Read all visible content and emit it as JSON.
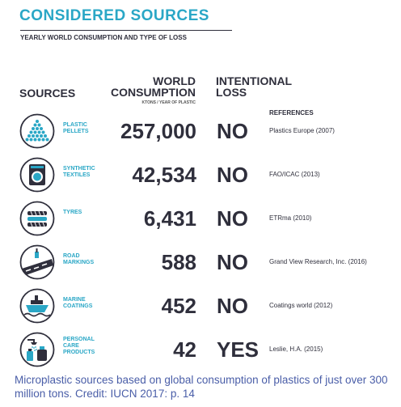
{
  "header": {
    "title": "CONSIDERED SOURCES",
    "subtitle": "YEARLY WORLD CONSUMPTION AND TYPE OF LOSS"
  },
  "columns": {
    "sources": "SOURCES",
    "consumption_line1": "WORLD",
    "consumption_line2": "CONSUMPTION",
    "consumption_unit": "KTONS / YEAR OF PLASTIC",
    "loss_line1": "INTENTIONAL",
    "loss_line2": "LOSS",
    "references": "REFERENCES"
  },
  "colors": {
    "accent": "#2aa7c6",
    "text": "#2f2f3c",
    "caption": "#4a5ea8"
  },
  "rows": [
    {
      "label1": "PLASTIC",
      "label2": "PELLETS",
      "label3": "",
      "icon": "pellets-icon",
      "value": "257,000",
      "loss": "NO",
      "ref": "Plastics Europe (2007)"
    },
    {
      "label1": "SYNTHETIC",
      "label2": "TEXTILES",
      "label3": "",
      "icon": "washing-machine-icon",
      "value": "42,534",
      "loss": "NO",
      "ref": "FAO/ICAC (2013)"
    },
    {
      "label1": "TYRES",
      "label2": "",
      "label3": "",
      "icon": "tyre-icon",
      "value": "6,431",
      "loss": "NO",
      "ref": "ETRma (2010)"
    },
    {
      "label1": "ROAD",
      "label2": "MARKINGS",
      "label3": "",
      "icon": "road-icon",
      "value": "588",
      "loss": "NO",
      "ref": "Grand View Research, Inc. (2016)"
    },
    {
      "label1": "MARINE",
      "label2": "COATINGS",
      "label3": "",
      "icon": "ship-icon",
      "value": "452",
      "loss": "NO",
      "ref": "Coatings world (2012)"
    },
    {
      "label1": "PERSONAL",
      "label2": "CARE",
      "label3": "PRODUCTS",
      "icon": "shower-icon",
      "value": "42",
      "loss": "YES",
      "ref": "Leslie, H.A. (2015)"
    }
  ],
  "caption": "Microplastic sources based on  global consumption of plastics of just over 300 million tons. Credit: IUCN 2017: p. 14"
}
